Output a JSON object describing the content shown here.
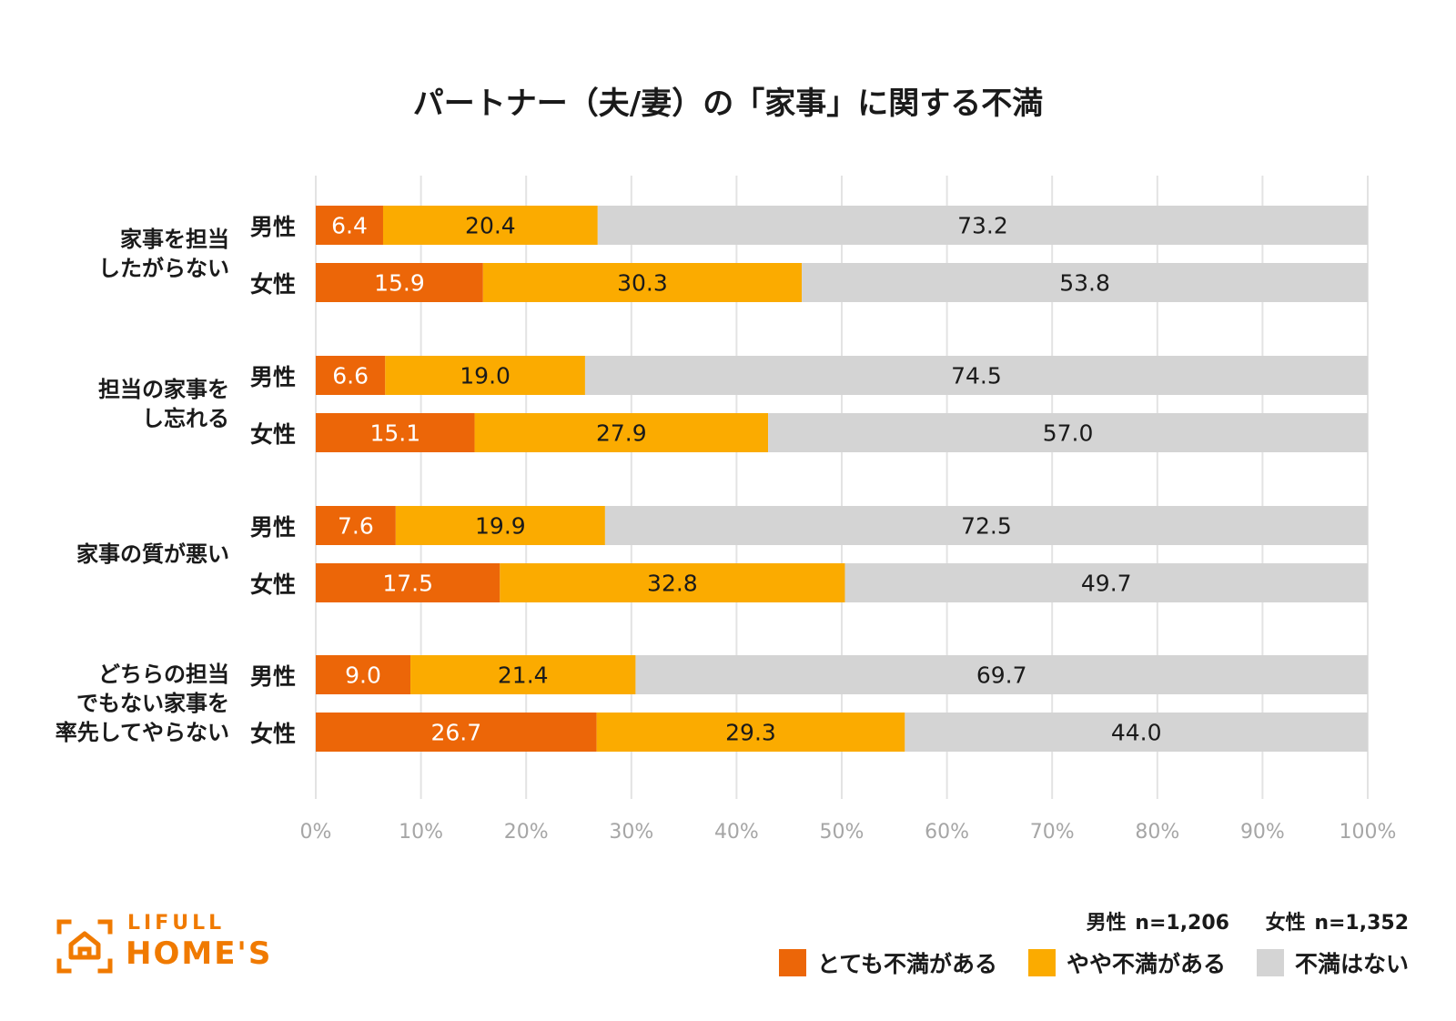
{
  "chart_data": {
    "type": "bar",
    "orientation": "horizontal",
    "stacked": "percent",
    "title": "パートナー（夫/妻）の「家事」に関する不満",
    "categories": [
      {
        "label_lines": [
          "家事を担当",
          "したがらない"
        ],
        "groups": [
          {
            "group": "男性",
            "values": [
              6.4,
              20.4,
              73.2
            ]
          },
          {
            "group": "女性",
            "values": [
              15.9,
              30.3,
              53.8
            ]
          }
        ]
      },
      {
        "label_lines": [
          "担当の家事を",
          "し忘れる"
        ],
        "groups": [
          {
            "group": "男性",
            "values": [
              6.6,
              19.0,
              74.5
            ]
          },
          {
            "group": "女性",
            "values": [
              15.1,
              27.9,
              57.0
            ]
          }
        ]
      },
      {
        "label_lines": [
          "家事の質が悪い"
        ],
        "groups": [
          {
            "group": "男性",
            "values": [
              7.6,
              19.9,
              72.5
            ]
          },
          {
            "group": "女性",
            "values": [
              17.5,
              32.8,
              49.7
            ]
          }
        ]
      },
      {
        "label_lines": [
          "どちらの担当",
          "でもない家事を",
          "率先してやらない"
        ],
        "groups": [
          {
            "group": "男性",
            "values": [
              9.0,
              21.4,
              69.7
            ]
          },
          {
            "group": "女性",
            "values": [
              26.7,
              29.3,
              44.0
            ]
          }
        ]
      }
    ],
    "series": [
      {
        "name": "とても不満がある",
        "color": "#ec6608",
        "label_color": "#ffffff"
      },
      {
        "name": "やや不満がある",
        "color": "#fbab00",
        "label_color": "#1a1a1a"
      },
      {
        "name": "不満はない",
        "color": "#d4d4d4",
        "label_color": "#1a1a1a"
      }
    ],
    "xlim": [
      0,
      100
    ],
    "x_ticks": [
      "0%",
      "10%",
      "20%",
      "30%",
      "40%",
      "50%",
      "60%",
      "70%",
      "80%",
      "90%",
      "100%"
    ],
    "grid": true,
    "legend_position": "bottom-right",
    "sample_note": {
      "male": "男性 n=1,206",
      "female": "女性 n=1,352"
    }
  },
  "brand": {
    "line1": "LIFULL",
    "line2": "HOME'S",
    "color": "#f07a00"
  }
}
